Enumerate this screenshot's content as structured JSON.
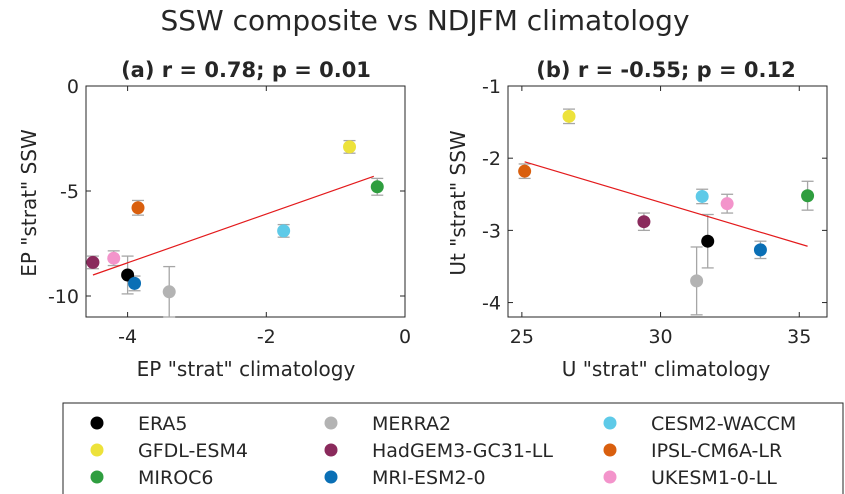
{
  "figure": {
    "title": "SSW composite vs NDJFM climatology"
  },
  "models": [
    {
      "name": "ERA5",
      "color": "#000000"
    },
    {
      "name": "GFDL-ESM4",
      "color": "#ede23a"
    },
    {
      "name": "MIROC6",
      "color": "#2f9e3f"
    },
    {
      "name": "MERRA2",
      "color": "#b3b3b3"
    },
    {
      "name": "HadGEM3-GC31-LL",
      "color": "#8a2a5c"
    },
    {
      "name": "MRI-ESM2-0",
      "color": "#0a6fb5"
    },
    {
      "name": "CESM2-WACCM",
      "color": "#5ecae8"
    },
    {
      "name": "IPSL-CM6A-LR",
      "color": "#d95f0e"
    },
    {
      "name": "UKESM1-0-LL",
      "color": "#f394cb"
    }
  ],
  "errorbar_color": "#a6a6a6",
  "fit_color": "#e31a1c",
  "chart_data": [
    {
      "type": "scatter",
      "title": "(a) r = 0.78; p = 0.01",
      "xlabel": "EP \"strat\" climatology",
      "ylabel": "EP \"strat\" SSW",
      "xlim": [
        -4.6,
        0
      ],
      "ylim": [
        -11,
        0
      ],
      "xticks": [
        -4,
        -2,
        0
      ],
      "yticks": [
        0,
        -5,
        -10
      ],
      "points": [
        {
          "model": "ERA5",
          "x": -4.0,
          "y": -9.0,
          "err": 0.9
        },
        {
          "model": "GFDL-ESM4",
          "x": -0.8,
          "y": -2.9,
          "err": 0.3
        },
        {
          "model": "MIROC6",
          "x": -0.4,
          "y": -4.8,
          "err": 0.4
        },
        {
          "model": "MERRA2",
          "x": -3.4,
          "y": -9.8,
          "err": 1.2
        },
        {
          "model": "HadGEM3-GC31-LL",
          "x": -4.5,
          "y": -8.4,
          "err": 0.3
        },
        {
          "model": "MRI-ESM2-0",
          "x": -3.9,
          "y": -9.4,
          "err": 0.35
        },
        {
          "model": "CESM2-WACCM",
          "x": -1.75,
          "y": -6.9,
          "err": 0.3
        },
        {
          "model": "IPSL-CM6A-LR",
          "x": -3.85,
          "y": -5.8,
          "err": 0.35
        },
        {
          "model": "UKESM1-0-LL",
          "x": -4.2,
          "y": -8.2,
          "err": 0.35
        }
      ],
      "fit": {
        "x": [
          -4.5,
          -0.45
        ],
        "y": [
          -9.0,
          -4.3
        ]
      }
    },
    {
      "type": "scatter",
      "title": "(b) r = -0.55; p = 0.12",
      "xlabel": "U \"strat\" climatology",
      "ylabel": "Ut \"strat\" SSW",
      "xlim": [
        24.5,
        36
      ],
      "ylim": [
        -4.2,
        -1
      ],
      "xticks": [
        25,
        30,
        35
      ],
      "yticks": [
        -1,
        -2,
        -3,
        -4
      ],
      "points": [
        {
          "model": "ERA5",
          "x": 31.7,
          "y": -3.15,
          "err": 0.37
        },
        {
          "model": "GFDL-ESM4",
          "x": 26.7,
          "y": -1.42,
          "err": 0.1
        },
        {
          "model": "MIROC6",
          "x": 35.3,
          "y": -2.52,
          "err": 0.2
        },
        {
          "model": "MERRA2",
          "x": 31.3,
          "y": -3.7,
          "err": 0.47
        },
        {
          "model": "HadGEM3-GC31-LL",
          "x": 29.4,
          "y": -2.88,
          "err": 0.12
        },
        {
          "model": "MRI-ESM2-0",
          "x": 33.6,
          "y": -3.27,
          "err": 0.12
        },
        {
          "model": "CESM2-WACCM",
          "x": 31.5,
          "y": -2.53,
          "err": 0.1
        },
        {
          "model": "IPSL-CM6A-LR",
          "x": 25.1,
          "y": -2.18,
          "err": 0.1
        },
        {
          "model": "UKESM1-0-LL",
          "x": 32.4,
          "y": -2.63,
          "err": 0.13
        }
      ],
      "fit": {
        "x": [
          25.1,
          35.3
        ],
        "y": [
          -2.05,
          -3.22
        ]
      }
    }
  ]
}
